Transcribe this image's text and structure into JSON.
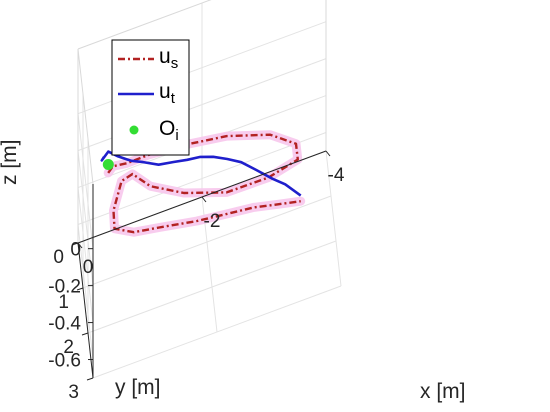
{
  "chart_data": {
    "type": "line",
    "projection": "3d",
    "grid": true,
    "legend_placement": "top-left",
    "colors": {
      "us": "#b22222",
      "us_glow": "#f7c6ec",
      "ut": "#1f1fcc",
      "oi": "#33dd33",
      "grid": "#e3e3e3",
      "axis": "#262626"
    },
    "axes": {
      "x": {
        "label": "x [m]",
        "lim": [
          -4,
          0
        ],
        "ticks": [
          -4,
          -2,
          0
        ],
        "tick_labels": [
          "-4",
          "-2",
          "0"
        ]
      },
      "y": {
        "label": "y [m]",
        "lim": [
          0,
          3
        ],
        "ticks": [
          0,
          1,
          2,
          3
        ],
        "tick_labels": [
          "0",
          "1",
          "2",
          "3"
        ]
      },
      "z": {
        "label": "z [m]",
        "lim": [
          -0.7,
          0.35
        ],
        "ticks": [
          -0.6,
          -0.4,
          -0.2,
          0
        ],
        "tick_labels": [
          "-0.6",
          "-0.4",
          "-0.2",
          "0"
        ]
      }
    },
    "series": [
      {
        "name": "u",
        "subscript": "s",
        "style": "dash-dot",
        "points": [
          [
            -0.35,
            1.7,
            0.05
          ],
          [
            -0.45,
            1.4,
            0.0
          ],
          [
            -0.7,
            1.05,
            -0.1
          ],
          [
            -1.1,
            0.65,
            -0.2
          ],
          [
            -1.7,
            0.25,
            -0.32
          ],
          [
            -2.4,
            0.0,
            -0.42
          ],
          [
            -3.1,
            0.0,
            -0.5
          ],
          [
            -3.5,
            0.2,
            -0.55
          ],
          [
            -3.5,
            0.55,
            -0.55
          ],
          [
            -3.0,
            0.9,
            -0.5
          ],
          [
            -2.3,
            1.2,
            -0.42
          ],
          [
            -1.6,
            1.35,
            -0.3
          ],
          [
            -1.05,
            1.45,
            -0.17
          ],
          [
            -0.75,
            1.6,
            -0.03
          ],
          [
            -0.55,
            1.9,
            0.03
          ],
          [
            -0.4,
            2.15,
            -0.05
          ],
          [
            -0.4,
            2.35,
            -0.1
          ],
          [
            -0.7,
            2.5,
            -0.12
          ],
          [
            -1.1,
            2.6,
            -0.12
          ],
          [
            -1.7,
            2.72,
            -0.13
          ],
          [
            -2.2,
            2.85,
            -0.12
          ],
          [
            -2.6,
            2.92,
            -0.12
          ],
          [
            -3.0,
            2.97,
            -0.14
          ],
          [
            -3.35,
            3.0,
            -0.16
          ]
        ]
      },
      {
        "name": "u",
        "subscript": "t",
        "style": "solid",
        "points": [
          [
            -0.28,
            1.72,
            0.15
          ],
          [
            -0.25,
            1.66,
            0.12
          ],
          [
            -0.35,
            1.72,
            0.17
          ],
          [
            -0.5,
            1.82,
            0.15
          ],
          [
            -0.7,
            1.98,
            0.14
          ],
          [
            -0.88,
            2.1,
            0.14
          ],
          [
            -1.12,
            2.24,
            0.13
          ],
          [
            -1.35,
            2.38,
            0.15
          ],
          [
            -1.56,
            2.52,
            0.17
          ],
          [
            -1.76,
            2.64,
            0.19
          ],
          [
            -1.96,
            2.74,
            0.19
          ],
          [
            -2.18,
            2.82,
            0.17
          ],
          [
            -2.4,
            2.88,
            0.14
          ],
          [
            -2.64,
            2.93,
            0.08
          ],
          [
            -2.9,
            2.97,
            0.01
          ],
          [
            -3.1,
            2.99,
            -0.04
          ],
          [
            -3.35,
            3.0,
            -0.13
          ]
        ]
      },
      {
        "name": "O",
        "subscript": "i",
        "style": "marker",
        "points": [
          [
            -0.35,
            1.72,
            0.1
          ]
        ]
      }
    ]
  }
}
